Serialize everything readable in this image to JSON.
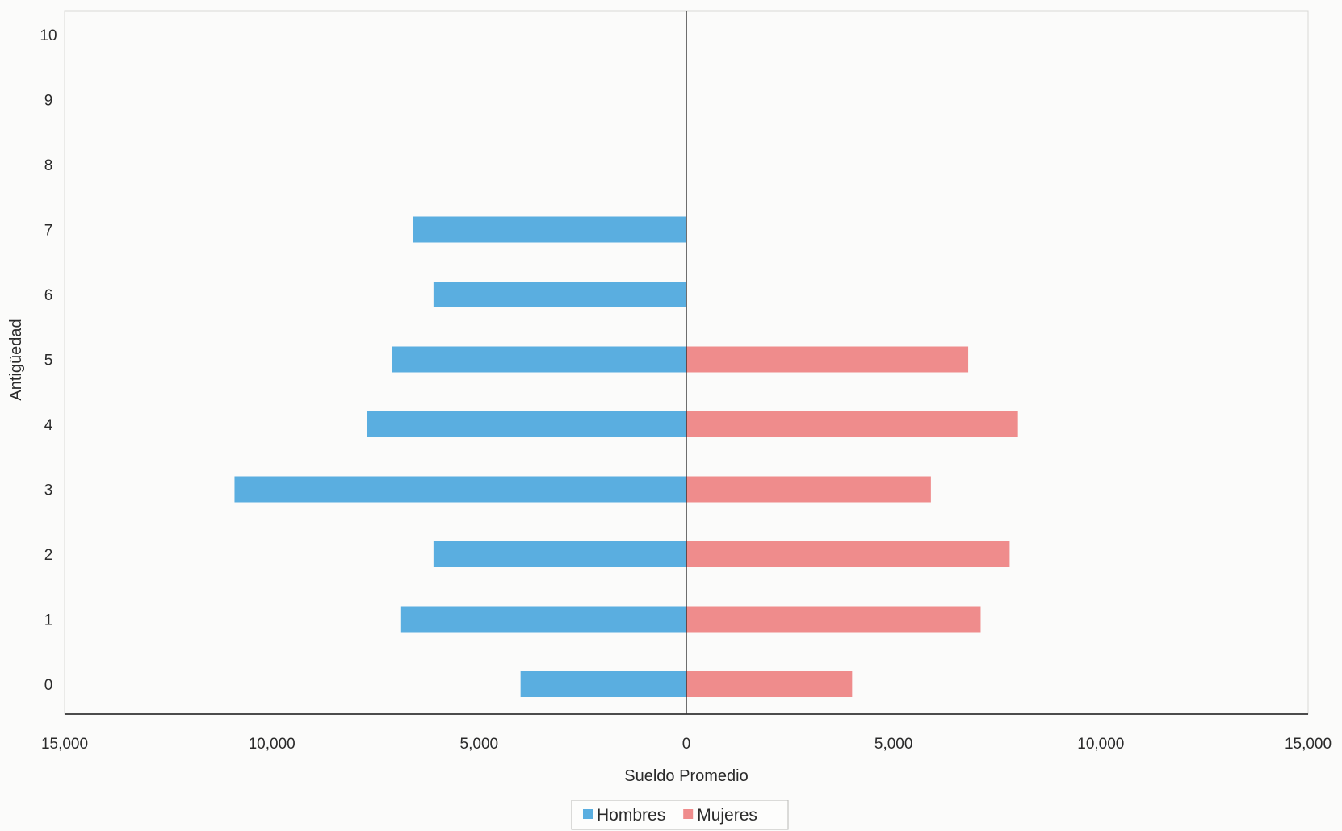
{
  "chart_data": {
    "type": "bar",
    "orientation": "horizontal",
    "subtype": "population-pyramid",
    "title": "",
    "xlabel": "Sueldo Promedio",
    "ylabel": "Antigüedad",
    "categories": [
      "0",
      "1",
      "2",
      "3",
      "4",
      "5",
      "6",
      "7",
      "8",
      "9",
      "10"
    ],
    "x_ticks": [
      "15,000",
      "10,000",
      "5,000",
      "0",
      "5,000",
      "10,000",
      "15,000"
    ],
    "xlim": [
      -15000,
      15000
    ],
    "grid": false,
    "legend_position": "bottom",
    "series": [
      {
        "name": "Hombres",
        "side": "left",
        "color": "#5aaee0",
        "values": [
          4000,
          6900,
          6100,
          10900,
          7700,
          7100,
          6100,
          6600,
          0,
          0,
          0
        ]
      },
      {
        "name": "Mujeres",
        "side": "right",
        "color": "#ef8c8c",
        "values": [
          4000,
          7100,
          7800,
          5900,
          8000,
          6800,
          0,
          0,
          0,
          0,
          0
        ]
      }
    ]
  }
}
